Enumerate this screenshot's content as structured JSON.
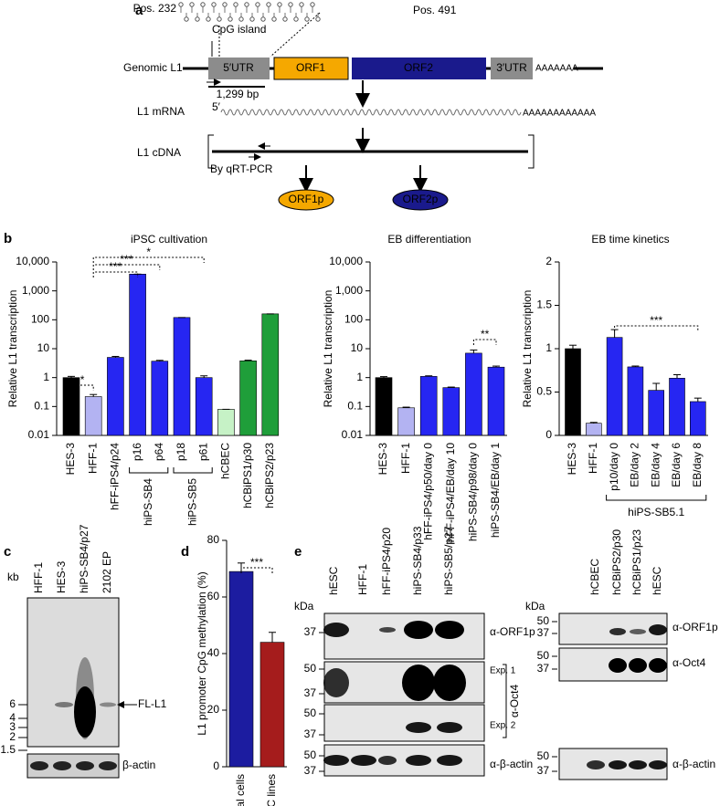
{
  "panel_labels": [
    "a",
    "b",
    "c",
    "d",
    "e"
  ],
  "panel_a": {
    "pos_start": "Pos. 232",
    "pos_end": "Pos. 491",
    "cpg_island": "CpG island",
    "genomic_label": "Genomic L1",
    "utr5": "5′UTR",
    "orf1": "ORF1",
    "orf2": "ORF2",
    "utr3": "3′UTR",
    "polya_genomic": "AAAAAAA",
    "length": "1,299 bp",
    "mrna_label": "L1 mRNA",
    "mrna_5prime": "5′",
    "polya_mrna": "AAAAAAAAAAAA",
    "cdna_label": "L1 cDNA",
    "method": "By qRT-PCR",
    "protein1": "ORF1p",
    "protein2": "ORF2p"
  },
  "chart_data": [
    {
      "type": "bar",
      "title": "iPSC cultivation",
      "y_label": "Relative L1 transcription",
      "log_scale": true,
      "ylim": [
        0.01,
        10000
      ],
      "yticks": [
        0.01,
        0.1,
        1,
        10,
        100,
        {
          "value": 1000,
          "label": "1,000"
        },
        {
          "value": 10000,
          "label": "10,000"
        }
      ],
      "categories": [
        "HES-3",
        "HFF-1",
        "hFF-iPS4/p24",
        "p16",
        "p64",
        "p18",
        "p61",
        "hCBEC",
        "hCBiPS1/p30",
        "hCBiPS2/p23"
      ],
      "groups": [
        "hiPS-SB4",
        "hiPS-SB5"
      ],
      "values": [
        1,
        0.22,
        5,
        3800,
        3.7,
        120,
        1,
        0.08,
        3.8,
        160
      ],
      "errors": [
        0.1,
        0.04,
        0.4,
        0,
        0.25,
        0,
        0.15,
        0,
        0.2,
        0
      ],
      "colors": [
        "#000000",
        "#b3b3f2",
        "#2626f2",
        "#2626f2",
        "#2626f2",
        "#2626f2",
        "#2626f2",
        "#c6f2c6",
        "#1f9e3a",
        "#1f9e3a"
      ],
      "annotations": [
        "*",
        "***",
        "***",
        "*"
      ]
    },
    {
      "type": "bar",
      "title": "EB differentiation",
      "y_label": "Relative L1 transcription",
      "log_scale": true,
      "ylim": [
        0.01,
        10000
      ],
      "yticks": [
        0.01,
        0.1,
        1,
        10,
        100,
        {
          "value": 1000,
          "label": "1,000"
        },
        {
          "value": 10000,
          "label": "10,000"
        }
      ],
      "categories": [
        "HES-3",
        "HFF-1",
        "hFF-iPS4/p50/day 0",
        "hFF-iPS4/EB/day 10",
        "hiPS-SB4/p98/day 0",
        "hiPS-SB4/EB/day 1"
      ],
      "values": [
        1,
        0.09,
        1.1,
        0.45,
        7,
        2.3
      ],
      "errors": [
        0.08,
        0.005,
        0.05,
        0.02,
        2,
        0.2
      ],
      "colors": [
        "#000000",
        "#b3b3f2",
        "#2626f2",
        "#2626f2",
        "#2626f2",
        "#2626f2"
      ],
      "annotations": [
        "**"
      ]
    },
    {
      "type": "bar",
      "title": "EB time kinetics",
      "y_label": "Relative L1 transcription",
      "log_scale": false,
      "ylim": [
        0,
        2
      ],
      "yticks": [
        0,
        0.5,
        1,
        1.5,
        2
      ],
      "categories": [
        "HES-3",
        "HFF-1",
        "p10/day 0",
        "EB/day 2",
        "EB/day 4",
        "EB/day 6",
        "EB/day 8"
      ],
      "groups": [
        "hiPS-SB5.1"
      ],
      "values": [
        1.0,
        0.14,
        1.13,
        0.79,
        0.52,
        0.66,
        0.39
      ],
      "errors": [
        0.04,
        0.01,
        0.09,
        0.01,
        0.08,
        0.04,
        0.04
      ],
      "colors": [
        "#000000",
        "#b3b3f2",
        "#2626f2",
        "#2626f2",
        "#2626f2",
        "#2626f2",
        "#2626f2"
      ],
      "annotations": [
        "***"
      ]
    },
    {
      "type": "bar",
      "y_label": "L1 promoter CpG methylation (%)",
      "log_scale": false,
      "ylim": [
        0,
        80
      ],
      "yticks": [
        0,
        20,
        40,
        60,
        80
      ],
      "categories": [
        "Parental cells",
        "iPSC lines"
      ],
      "values": [
        69,
        44
      ],
      "errors": [
        3,
        3.5
      ],
      "colors": [
        "#1c1ca0",
        "#a51c1c"
      ],
      "annotations": [
        "***"
      ]
    }
  ],
  "panel_c": {
    "lanes": [
      "HFF-1",
      "HES-3",
      "hiPS-SB4/p27",
      "2102 EP"
    ],
    "unit": "kb",
    "markers": [
      6,
      4,
      3,
      2,
      1.5
    ],
    "band_label": "FL-L1",
    "loading_label": "β-actin"
  },
  "panel_e": {
    "unit": "kDa",
    "left": {
      "lanes": [
        "hESC",
        "HFF-1",
        "hFF-iPS4/p20",
        "hiPS-SB4/p33",
        "hiPS-SB5/p27"
      ],
      "orf1p_markers": [
        37
      ],
      "exp1_markers": [
        50,
        37
      ],
      "exp2_markers": [
        50,
        37
      ],
      "actin_markers": [
        50,
        37
      ],
      "orf1p_label": "α-ORF1p",
      "exp1": "Exp. 1",
      "exp2": "Exp. 2",
      "oct4_label": "α-Oct4",
      "actin_label": "α-β-actin"
    },
    "right": {
      "lanes": [
        "hCBEC",
        "hCBiPS2/p30",
        "hCBiPS1/p23",
        "hESC"
      ],
      "orf1p_markers": [
        50,
        37
      ],
      "oct4_markers": [
        50,
        37
      ],
      "actin_markers": [
        50,
        37
      ],
      "orf1p_label": "α-ORF1p",
      "oct4_label": "α-Oct4",
      "actin_label": "α-β-actin"
    }
  }
}
